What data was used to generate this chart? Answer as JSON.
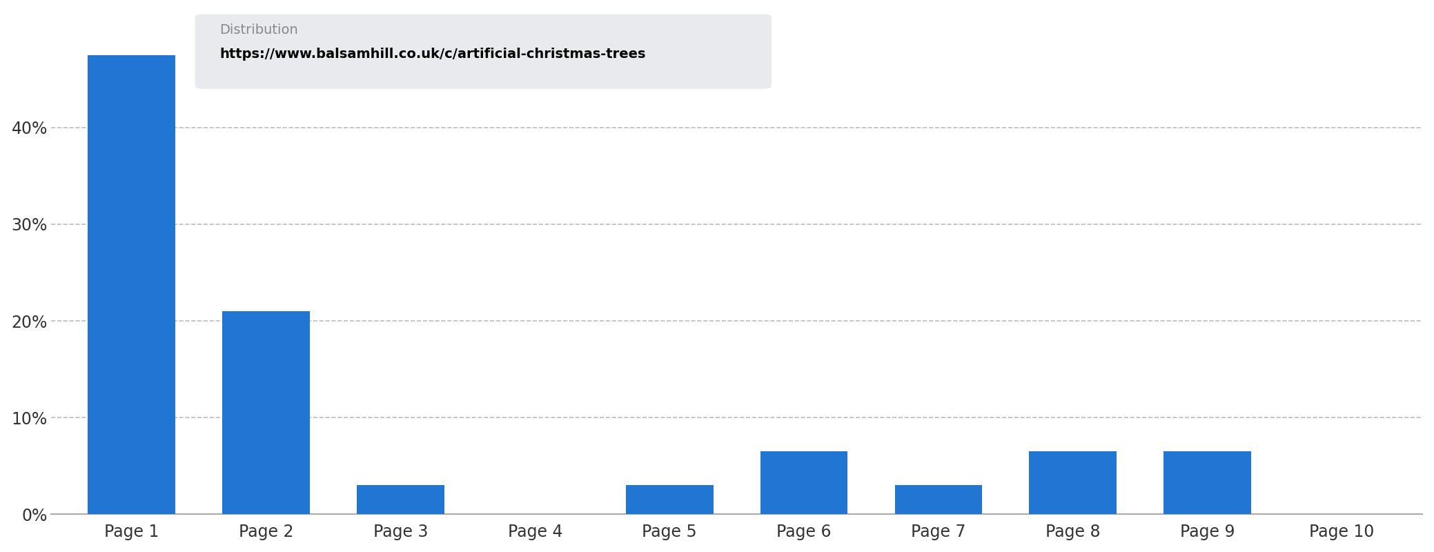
{
  "categories": [
    "Page 1",
    "Page 2",
    "Page 3",
    "Page 4",
    "Page 5",
    "Page 6",
    "Page 7",
    "Page 8",
    "Page 9",
    "Page 10"
  ],
  "values": [
    47.5,
    21,
    3,
    0,
    3,
    6.5,
    3,
    6.5,
    6.5,
    0
  ],
  "bar_color": "#2176d4",
  "background_color": "#ffffff",
  "ylim": [
    0,
    52
  ],
  "yticks": [
    0,
    10,
    20,
    30,
    40
  ],
  "ytick_labels": [
    "0%",
    "10%",
    "20%",
    "30%",
    "40%"
  ],
  "tooltip_title": "Distribution",
  "tooltip_url": "https://www.balsamhill.co.uk/c/artificial-christmas-trees",
  "tooltip_bg": "#e8eaed",
  "tooltip_title_color": "#888888",
  "tooltip_url_color": "#000000",
  "grid_color": "#bbbbbb",
  "axis_color": "#aaaaaa"
}
